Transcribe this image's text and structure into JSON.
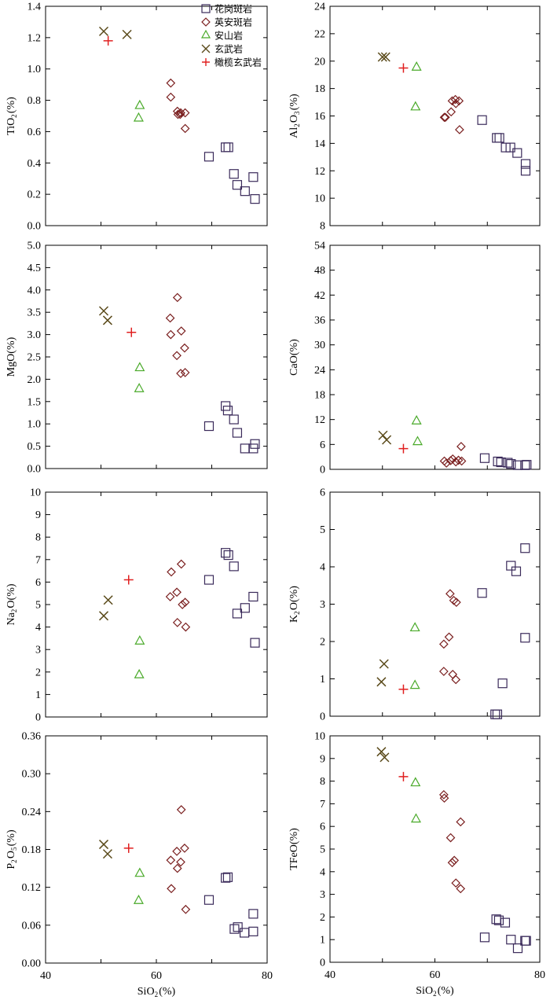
{
  "colors": {
    "granite": "#3a2a5a",
    "dacite": "#7a1f1f",
    "andesite": "#4aaa2a",
    "basalt": "#5a4a1a",
    "olivine_basalt": "#e02020"
  },
  "legend": {
    "granite": "花岗斑岩",
    "dacite": "英安斑岩",
    "andesite": "安山岩",
    "basalt": "玄武岩",
    "olivine_basalt": "橄榄玄武岩"
  },
  "chart_data": [
    {
      "type": "scatter",
      "id": "tio2",
      "ylabel": "TiO2(%)",
      "xlabel": "",
      "xlim": [
        40,
        80
      ],
      "ylim": [
        0,
        1.4
      ],
      "yticks": [
        0.0,
        0.2,
        0.4,
        0.6,
        0.8,
        1.0,
        1.2,
        1.4
      ],
      "ytick_labels": [
        "0.0",
        "0.2",
        "0.4",
        "0.6",
        "0.8",
        "1.0",
        "1.2",
        "1.4"
      ],
      "series": [
        {
          "key": "granite",
          "points": [
            [
              69.5,
              0.44
            ],
            [
              72.5,
              0.5
            ],
            [
              73.0,
              0.5
            ],
            [
              74.0,
              0.33
            ],
            [
              74.6,
              0.26
            ],
            [
              76.0,
              0.22
            ],
            [
              77.5,
              0.31
            ],
            [
              77.8,
              0.17
            ]
          ]
        },
        {
          "key": "dacite",
          "points": [
            [
              62.6,
              0.91
            ],
            [
              62.6,
              0.82
            ],
            [
              63.8,
              0.73
            ],
            [
              64.4,
              0.72
            ],
            [
              65.2,
              0.72
            ],
            [
              63.9,
              0.71
            ],
            [
              64.3,
              0.71
            ],
            [
              65.2,
              0.62
            ]
          ]
        },
        {
          "key": "andesite",
          "points": [
            [
              57.0,
              0.77
            ],
            [
              56.8,
              0.69
            ]
          ]
        },
        {
          "key": "basalt",
          "points": [
            [
              50.5,
              1.24
            ],
            [
              54.7,
              1.22
            ]
          ]
        },
        {
          "key": "olivine_basalt",
          "points": [
            [
              51.3,
              1.18
            ]
          ]
        }
      ]
    },
    {
      "type": "scatter",
      "id": "al2o3",
      "ylabel": "Al2O3(%)",
      "xlabel": "",
      "xlim": [
        40,
        80
      ],
      "ylim": [
        8,
        24
      ],
      "yticks": [
        8,
        10,
        12,
        14,
        16,
        18,
        20,
        22,
        24
      ],
      "ytick_labels": [
        "8",
        "10",
        "12",
        "14",
        "16",
        "18",
        "20",
        "22",
        "24"
      ],
      "series": [
        {
          "key": "granite",
          "points": [
            [
              69.0,
              15.7
            ],
            [
              71.8,
              14.4
            ],
            [
              72.3,
              14.4
            ],
            [
              73.5,
              13.7
            ],
            [
              74.4,
              13.7
            ],
            [
              75.7,
              13.3
            ],
            [
              77.3,
              12.5
            ],
            [
              77.3,
              12.0
            ]
          ]
        },
        {
          "key": "dacite",
          "points": [
            [
              61.8,
              15.9
            ],
            [
              62.0,
              15.9
            ],
            [
              63.1,
              16.3
            ],
            [
              63.3,
              17.1
            ],
            [
              63.9,
              17.2
            ],
            [
              64.0,
              16.9
            ],
            [
              64.6,
              17.1
            ],
            [
              64.7,
              15.0
            ]
          ]
        },
        {
          "key": "andesite",
          "points": [
            [
              56.5,
              19.6
            ],
            [
              56.3,
              16.7
            ]
          ]
        },
        {
          "key": "basalt",
          "points": [
            [
              50.0,
              20.3
            ],
            [
              50.6,
              20.3
            ]
          ]
        },
        {
          "key": "olivine_basalt",
          "points": [
            [
              54.0,
              19.5
            ]
          ]
        }
      ]
    },
    {
      "type": "scatter",
      "id": "mgo",
      "ylabel": "MgO(%)",
      "xlabel": "",
      "xlim": [
        40,
        80
      ],
      "ylim": [
        0,
        5.0
      ],
      "yticks": [
        0.0,
        0.5,
        1.0,
        1.5,
        2.0,
        2.5,
        3.0,
        3.5,
        4.0,
        4.5,
        5.0
      ],
      "ytick_labels": [
        "0.0",
        "0.5",
        "1.0",
        "1.5",
        "2.0",
        "2.5",
        "3.0",
        "3.5",
        "4.0",
        "4.5",
        "5.0"
      ],
      "series": [
        {
          "key": "granite",
          "points": [
            [
              69.5,
              0.95
            ],
            [
              72.5,
              1.4
            ],
            [
              72.9,
              1.3
            ],
            [
              74.0,
              1.1
            ],
            [
              74.6,
              0.8
            ],
            [
              76.0,
              0.45
            ],
            [
              77.5,
              0.45
            ],
            [
              77.8,
              0.55
            ]
          ]
        },
        {
          "key": "dacite",
          "points": [
            [
              62.5,
              3.37
            ],
            [
              62.6,
              3.0
            ],
            [
              63.8,
              3.83
            ],
            [
              64.5,
              3.08
            ],
            [
              65.1,
              2.7
            ],
            [
              63.7,
              2.53
            ],
            [
              64.4,
              2.13
            ],
            [
              65.2,
              2.15
            ]
          ]
        },
        {
          "key": "andesite",
          "points": [
            [
              57.0,
              2.27
            ],
            [
              56.9,
              1.8
            ]
          ]
        },
        {
          "key": "basalt",
          "points": [
            [
              50.5,
              3.53
            ],
            [
              51.2,
              3.32
            ]
          ]
        },
        {
          "key": "olivine_basalt",
          "points": [
            [
              55.5,
              3.05
            ]
          ]
        }
      ]
    },
    {
      "type": "scatter",
      "id": "cao",
      "ylabel": "CaO(%)",
      "xlabel": "",
      "xlim": [
        40,
        80
      ],
      "ylim": [
        0,
        54
      ],
      "yticks": [
        0,
        6,
        12,
        18,
        24,
        30,
        36,
        42,
        48,
        54
      ],
      "ytick_labels": [
        "0",
        "6",
        "12",
        "18",
        "24",
        "30",
        "36",
        "42",
        "48",
        "54"
      ],
      "series": [
        {
          "key": "granite",
          "points": [
            [
              69.5,
              2.7
            ],
            [
              72.0,
              1.9
            ],
            [
              72.6,
              1.7
            ],
            [
              73.9,
              1.6
            ],
            [
              74.5,
              1.3
            ],
            [
              75.8,
              1.0
            ],
            [
              77.2,
              1.0
            ],
            [
              77.5,
              1.1
            ]
          ]
        },
        {
          "key": "dacite",
          "points": [
            [
              61.8,
              2.0
            ],
            [
              62.2,
              1.5
            ],
            [
              63.0,
              2.1
            ],
            [
              63.4,
              2.5
            ],
            [
              64.0,
              1.8
            ],
            [
              64.5,
              2.2
            ],
            [
              65.0,
              5.5
            ],
            [
              65.1,
              2.0
            ]
          ]
        },
        {
          "key": "andesite",
          "points": [
            [
              56.5,
              11.8
            ],
            [
              56.7,
              6.8
            ]
          ]
        },
        {
          "key": "basalt",
          "points": [
            [
              50.1,
              8.2
            ],
            [
              50.8,
              7.1
            ]
          ]
        },
        {
          "key": "olivine_basalt",
          "points": [
            [
              54.0,
              5.0
            ]
          ]
        }
      ]
    },
    {
      "type": "scatter",
      "id": "na2o",
      "ylabel": "Na2O(%)",
      "xlabel": "",
      "xlim": [
        40,
        80
      ],
      "ylim": [
        0,
        10
      ],
      "yticks": [
        0,
        1,
        2,
        3,
        4,
        5,
        6,
        7,
        8,
        9,
        10
      ],
      "ytick_labels": [
        "0",
        "1",
        "2",
        "3",
        "4",
        "5",
        "6",
        "7",
        "8",
        "9",
        "10"
      ],
      "series": [
        {
          "key": "granite",
          "points": [
            [
              69.5,
              6.1
            ],
            [
              72.5,
              7.3
            ],
            [
              73.0,
              7.2
            ],
            [
              74.0,
              6.7
            ],
            [
              74.6,
              4.6
            ],
            [
              76.0,
              4.85
            ],
            [
              77.5,
              5.35
            ],
            [
              77.8,
              3.3
            ]
          ]
        },
        {
          "key": "dacite",
          "points": [
            [
              62.5,
              5.35
            ],
            [
              62.7,
              6.45
            ],
            [
              63.7,
              5.55
            ],
            [
              64.5,
              6.8
            ],
            [
              64.7,
              5.0
            ],
            [
              65.2,
              5.1
            ],
            [
              63.8,
              4.2
            ],
            [
              65.3,
              4.0
            ]
          ]
        },
        {
          "key": "andesite",
          "points": [
            [
              57.0,
              3.4
            ],
            [
              56.9,
              1.9
            ]
          ]
        },
        {
          "key": "basalt",
          "points": [
            [
              50.5,
              4.5
            ],
            [
              51.3,
              5.2
            ]
          ]
        },
        {
          "key": "olivine_basalt",
          "points": [
            [
              55.0,
              6.1
            ]
          ]
        }
      ]
    },
    {
      "type": "scatter",
      "id": "k2o",
      "ylabel": "K2O(%)",
      "xlabel": "",
      "xlim": [
        40,
        80
      ],
      "ylim": [
        0,
        6
      ],
      "yticks": [
        0,
        1,
        2,
        3,
        4,
        5,
        6
      ],
      "ytick_labels": [
        "0",
        "1",
        "2",
        "3",
        "4",
        "5",
        "6"
      ],
      "series": [
        {
          "key": "granite",
          "points": [
            [
              69.0,
              3.3
            ],
            [
              71.5,
              0.05
            ],
            [
              71.9,
              0.05
            ],
            [
              72.9,
              0.88
            ],
            [
              74.5,
              4.03
            ],
            [
              75.5,
              3.88
            ],
            [
              77.2,
              4.5
            ],
            [
              77.2,
              2.1
            ]
          ]
        },
        {
          "key": "dacite",
          "points": [
            [
              62.9,
              3.28
            ],
            [
              63.6,
              3.1
            ],
            [
              64.1,
              3.05
            ],
            [
              61.7,
              1.93
            ],
            [
              62.7,
              2.12
            ],
            [
              61.7,
              1.2
            ],
            [
              63.4,
              1.12
            ],
            [
              64.0,
              0.98
            ]
          ]
        },
        {
          "key": "andesite",
          "points": [
            [
              56.2,
              2.38
            ],
            [
              56.2,
              0.84
            ]
          ]
        },
        {
          "key": "basalt",
          "points": [
            [
              49.8,
              0.92
            ],
            [
              50.3,
              1.4
            ]
          ]
        },
        {
          "key": "olivine_basalt",
          "points": [
            [
              54.0,
              0.72
            ]
          ]
        }
      ]
    },
    {
      "type": "scatter",
      "id": "p2o5",
      "ylabel": "P2O5(%)",
      "xlabel": "SiO2(%)",
      "xlim": [
        40,
        80
      ],
      "ylim": [
        0,
        0.36
      ],
      "yticks": [
        0.0,
        0.06,
        0.12,
        0.18,
        0.24,
        0.3,
        0.36
      ],
      "ytick_labels": [
        "0.00",
        "0.06",
        "0.12",
        "0.18",
        "0.24",
        "0.30",
        "0.36"
      ],
      "xticks": [
        40,
        60,
        80
      ],
      "xtick_labels": [
        "40",
        "60",
        "80"
      ],
      "series": [
        {
          "key": "granite",
          "points": [
            [
              69.5,
              0.1
            ],
            [
              72.5,
              0.135
            ],
            [
              72.9,
              0.136
            ],
            [
              74.1,
              0.054
            ],
            [
              74.7,
              0.057
            ],
            [
              75.9,
              0.048
            ],
            [
              77.5,
              0.05
            ],
            [
              77.5,
              0.078
            ]
          ]
        },
        {
          "key": "dacite",
          "points": [
            [
              62.6,
              0.163
            ],
            [
              63.7,
              0.177
            ],
            [
              64.5,
              0.243
            ],
            [
              65.1,
              0.182
            ],
            [
              64.4,
              0.16
            ],
            [
              63.8,
              0.15
            ],
            [
              62.7,
              0.118
            ],
            [
              65.3,
              0.085
            ]
          ]
        },
        {
          "key": "andesite",
          "points": [
            [
              57.0,
              0.143
            ],
            [
              56.8,
              0.1
            ]
          ]
        },
        {
          "key": "basalt",
          "points": [
            [
              50.5,
              0.188
            ],
            [
              51.2,
              0.173
            ]
          ]
        },
        {
          "key": "olivine_basalt",
          "points": [
            [
              55.0,
              0.182
            ]
          ]
        }
      ]
    },
    {
      "type": "scatter",
      "id": "tfeo",
      "ylabel": "TFeO(%)",
      "xlabel": "SiO2(%)",
      "xlim": [
        40,
        80
      ],
      "ylim": [
        0,
        10
      ],
      "yticks": [
        0,
        1,
        2,
        3,
        4,
        5,
        6,
        7,
        8,
        9,
        10
      ],
      "ytick_labels": [
        "0",
        "1",
        "2",
        "3",
        "4",
        "5",
        "6",
        "7",
        "8",
        "9",
        "10"
      ],
      "xticks": [
        40,
        60,
        80
      ],
      "xtick_labels": [
        "40",
        "60",
        "80"
      ],
      "series": [
        {
          "key": "granite",
          "points": [
            [
              69.5,
              1.1
            ],
            [
              71.7,
              1.9
            ],
            [
              72.2,
              1.85
            ],
            [
              73.4,
              1.75
            ],
            [
              74.5,
              1.0
            ],
            [
              75.8,
              0.62
            ],
            [
              77.2,
              0.95
            ],
            [
              77.4,
              0.95
            ]
          ]
        },
        {
          "key": "dacite",
          "points": [
            [
              61.7,
              7.4
            ],
            [
              61.8,
              7.25
            ],
            [
              63.0,
              5.5
            ],
            [
              63.3,
              4.4
            ],
            [
              63.7,
              4.5
            ],
            [
              64.0,
              3.5
            ],
            [
              64.9,
              6.2
            ],
            [
              64.9,
              3.25
            ]
          ]
        },
        {
          "key": "andesite",
          "points": [
            [
              56.3,
              7.95
            ],
            [
              56.4,
              6.35
            ]
          ]
        },
        {
          "key": "basalt",
          "points": [
            [
              49.8,
              9.3
            ],
            [
              50.4,
              9.05
            ]
          ]
        },
        {
          "key": "olivine_basalt",
          "points": [
            [
              54.0,
              8.2
            ]
          ]
        }
      ]
    }
  ]
}
